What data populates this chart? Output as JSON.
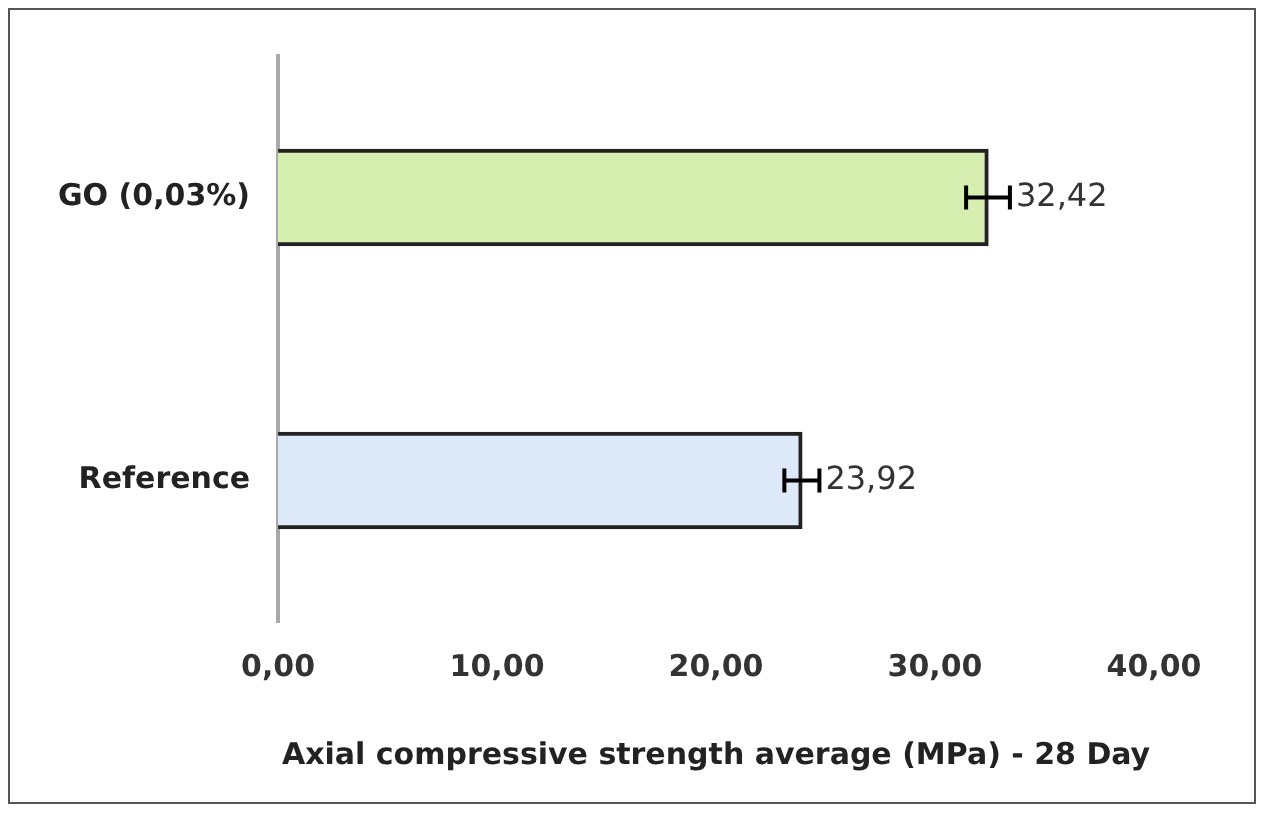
{
  "chart_data": {
    "type": "bar",
    "orientation": "horizontal",
    "categories": [
      "GO (0,03%)",
      "Reference"
    ],
    "values": [
      32.42,
      23.92
    ],
    "colors": [
      "#d6efb0",
      "#dde9f8"
    ],
    "errors": [
      1.0,
      0.8
    ],
    "value_labels": [
      "32,42",
      "23,92"
    ],
    "xlabel": "Axial compressive strength average (MPa) - 28 Day",
    "xlim": [
      0,
      40
    ],
    "xticks": [
      {
        "value": 0,
        "label": "0,00"
      },
      {
        "value": 10,
        "label": "10,00"
      },
      {
        "value": 20,
        "label": "20,00"
      },
      {
        "value": 30,
        "label": "30,00"
      },
      {
        "value": 40,
        "label": "40,00"
      }
    ],
    "grid": false,
    "legend": false
  }
}
